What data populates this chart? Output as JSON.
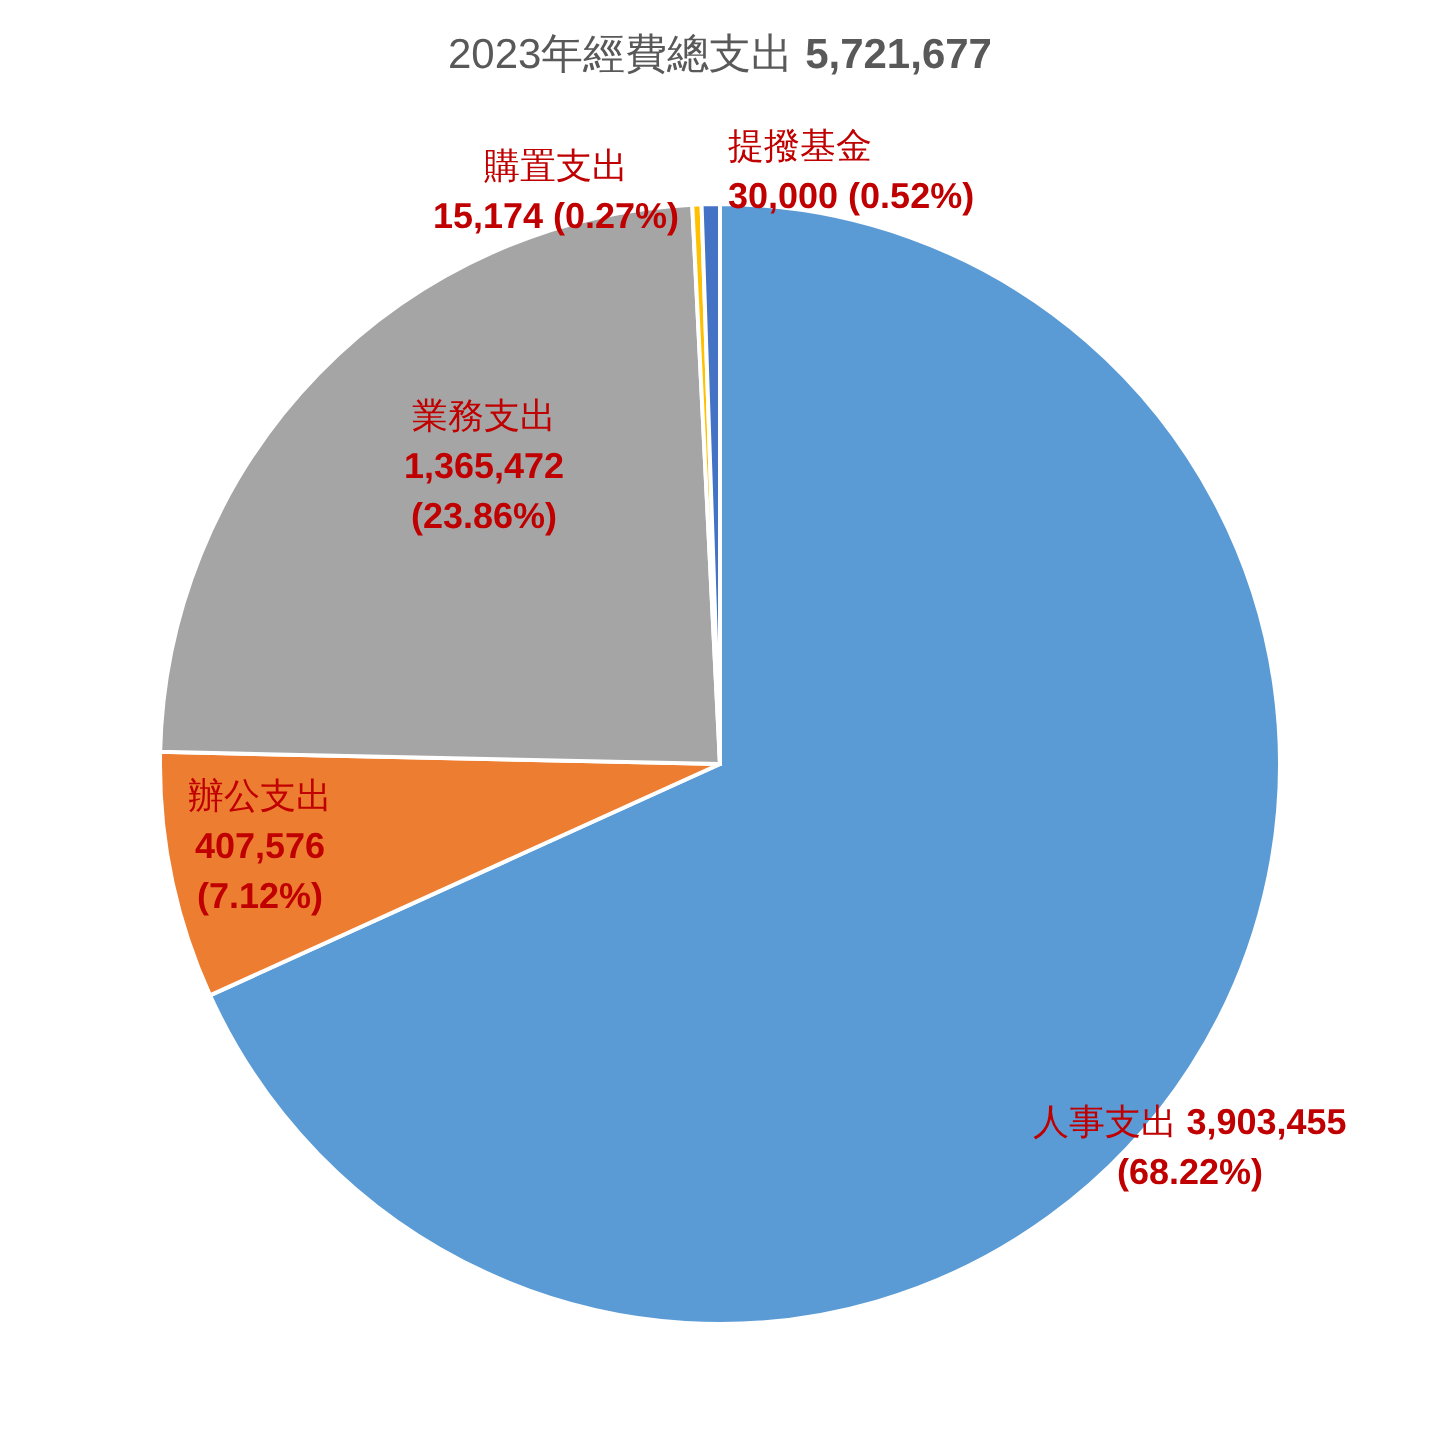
{
  "chart_data": {
    "type": "pie",
    "title": "2023年經費總支出 **5,721,677**",
    "categories": [
      "人事支出",
      "辦公支出",
      "業務支出",
      "購置支出",
      "提撥基金"
    ],
    "values": [
      3903455,
      407576,
      1365472,
      15174,
      30000
    ],
    "colors": [
      "#5b9bd5",
      "#ed7d31",
      "#a5a5a5",
      "#ffc000",
      "#4472c4"
    ],
    "value_labels": [
      "3,903,455 (68.22%)",
      "407,576 (7.12%)",
      "1,365,472 (23.86%)",
      "15,174 (0.27%)",
      "30,000 (0.52%)"
    ]
  }
}
